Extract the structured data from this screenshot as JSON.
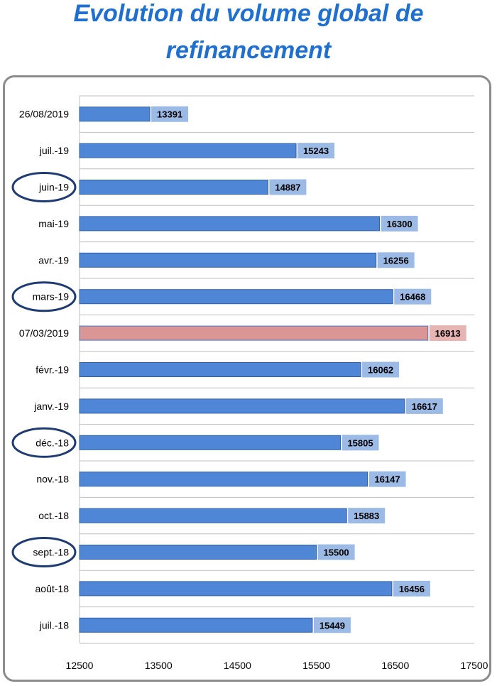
{
  "title": {
    "line1": "Evolution du volume global de",
    "line2": "refinancement"
  },
  "colors": {
    "title": "#1f6fd1",
    "bar": "#4f86d6",
    "bar_border": "#2e5fa8",
    "label_bg": "#9bbbe6",
    "highlight_bar": "#d99694",
    "highlight_border": "#4a74c0",
    "highlight_label_bg": "#e6b4b3",
    "circle": "#1f3b73",
    "grid": "#bfbfbf"
  },
  "chart_data": {
    "type": "bar",
    "orientation": "horizontal",
    "categories": [
      "26/08/2019",
      "juil.-19",
      "juin-19",
      "mai-19",
      "avr.-19",
      "mars-19",
      "07/03/2019",
      "févr.-19",
      "janv.-19",
      "déc.-18",
      "nov.-18",
      "oct.-18",
      "sept.-18",
      "août-18",
      "juil.-18"
    ],
    "values": [
      13391,
      15243,
      14887,
      16300,
      16256,
      16468,
      16913,
      16062,
      16617,
      15805,
      16147,
      15883,
      15500,
      16456,
      15449
    ],
    "highlighted_category": "07/03/2019",
    "circled_categories": [
      "juin-19",
      "mars-19",
      "déc.-18",
      "sept.-18"
    ],
    "xlim": [
      12500,
      17500
    ],
    "xticks": [
      "12500",
      "13500",
      "14500",
      "15500",
      "16500",
      "17500"
    ],
    "grid": true,
    "data_labels": true,
    "legend": "none"
  }
}
